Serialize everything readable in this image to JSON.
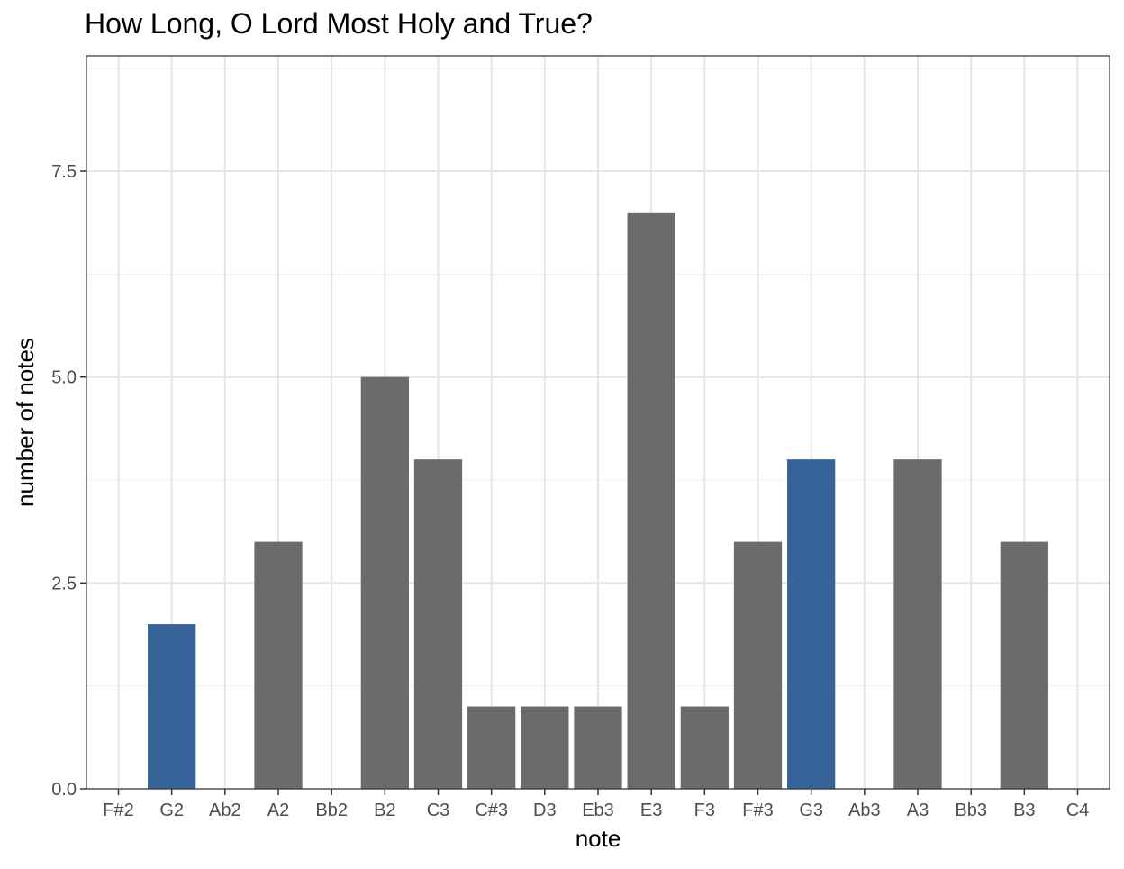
{
  "chart_data": {
    "type": "bar",
    "title": "How Long, O Lord Most Holy and True?",
    "xlabel": "note",
    "ylabel": "number of notes",
    "categories": [
      "F#2",
      "G2",
      "Ab2",
      "A2",
      "Bb2",
      "B2",
      "C3",
      "C#3",
      "D3",
      "Eb3",
      "E3",
      "F3",
      "F#3",
      "G3",
      "Ab3",
      "A3",
      "Bb3",
      "B3",
      "C4"
    ],
    "values": [
      0,
      2,
      0,
      3,
      0,
      5,
      4,
      1,
      1,
      1,
      7,
      1,
      3,
      4,
      0,
      4,
      0,
      3,
      0
    ],
    "highlighted": [
      "G2",
      "G3"
    ],
    "colors": {
      "default_bar": "#6b6b6b",
      "highlight_bar": "#366398",
      "grid_major": "#e5e5e5",
      "grid_minor": "#f0f0f0",
      "panel_border": "#333333"
    },
    "ylim": [
      0,
      8.9
    ],
    "y_ticks": [
      0,
      2.5,
      5,
      7.5
    ],
    "y_tick_labels": [
      "0.0",
      "2.5",
      "5.0",
      "7.5"
    ],
    "grid": true,
    "legend": "none"
  }
}
